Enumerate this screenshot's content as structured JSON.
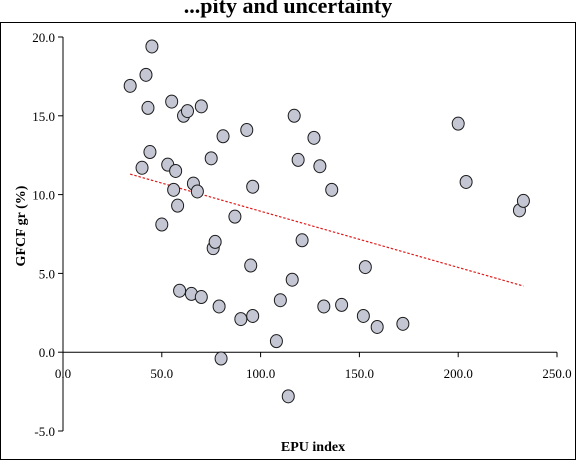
{
  "chart_data": {
    "type": "scatter",
    "title": "...pity and uncertainty",
    "xlabel": "EPU index",
    "ylabel": "GFCF gr (%)",
    "xlim": [
      0,
      250
    ],
    "ylim": [
      -5,
      20
    ],
    "x_ticks": [
      "0.0",
      "50.0",
      "100.0",
      "150.0",
      "200.0",
      "250.0"
    ],
    "y_ticks": [
      "20.0",
      "15.0",
      "10.0",
      "5.0",
      "0.0",
      "-5.0"
    ],
    "grid": false,
    "legend": "none",
    "colors": {
      "marker_fill": "#c4c7d3",
      "marker_stroke": "#1a1a1a",
      "trendline": "#e01b1b"
    },
    "points": [
      {
        "x": 34,
        "y": 16.9
      },
      {
        "x": 40,
        "y": 11.7
      },
      {
        "x": 42,
        "y": 17.6
      },
      {
        "x": 43,
        "y": 15.5
      },
      {
        "x": 44,
        "y": 12.7
      },
      {
        "x": 45,
        "y": 19.4
      },
      {
        "x": 50,
        "y": 8.1
      },
      {
        "x": 53,
        "y": 11.9
      },
      {
        "x": 55,
        "y": 15.9
      },
      {
        "x": 56,
        "y": 10.3
      },
      {
        "x": 57,
        "y": 11.5
      },
      {
        "x": 58,
        "y": 9.3
      },
      {
        "x": 59,
        "y": 3.9
      },
      {
        "x": 61,
        "y": 15.0
      },
      {
        "x": 63,
        "y": 15.3
      },
      {
        "x": 65,
        "y": 3.7
      },
      {
        "x": 66,
        "y": 10.7
      },
      {
        "x": 68,
        "y": 10.2
      },
      {
        "x": 70,
        "y": 15.6
      },
      {
        "x": 70,
        "y": 3.5
      },
      {
        "x": 75,
        "y": 12.3
      },
      {
        "x": 76,
        "y": 6.6
      },
      {
        "x": 77,
        "y": 7.0
      },
      {
        "x": 79,
        "y": 2.9
      },
      {
        "x": 80,
        "y": -0.4
      },
      {
        "x": 81,
        "y": 13.7
      },
      {
        "x": 87,
        "y": 8.6
      },
      {
        "x": 90,
        "y": 2.1
      },
      {
        "x": 93,
        "y": 14.1
      },
      {
        "x": 95,
        "y": 5.5
      },
      {
        "x": 96,
        "y": 10.5
      },
      {
        "x": 96,
        "y": 2.3
      },
      {
        "x": 108,
        "y": 0.7
      },
      {
        "x": 110,
        "y": 3.3
      },
      {
        "x": 114,
        "y": -2.8
      },
      {
        "x": 116,
        "y": 4.6
      },
      {
        "x": 117,
        "y": 15.0
      },
      {
        "x": 119,
        "y": 12.2
      },
      {
        "x": 121,
        "y": 7.1
      },
      {
        "x": 127,
        "y": 13.6
      },
      {
        "x": 130,
        "y": 11.8
      },
      {
        "x": 132,
        "y": 2.9
      },
      {
        "x": 136,
        "y": 10.3
      },
      {
        "x": 141,
        "y": 3.0
      },
      {
        "x": 152,
        "y": 2.3
      },
      {
        "x": 153,
        "y": 5.4
      },
      {
        "x": 159,
        "y": 1.6
      },
      {
        "x": 172,
        "y": 1.8
      },
      {
        "x": 200,
        "y": 14.5
      },
      {
        "x": 204,
        "y": 10.8
      },
      {
        "x": 231,
        "y": 9.0
      },
      {
        "x": 233,
        "y": 9.6
      }
    ],
    "trendline": {
      "x": [
        34,
        233
      ],
      "y": [
        11.3,
        4.2
      ]
    }
  }
}
